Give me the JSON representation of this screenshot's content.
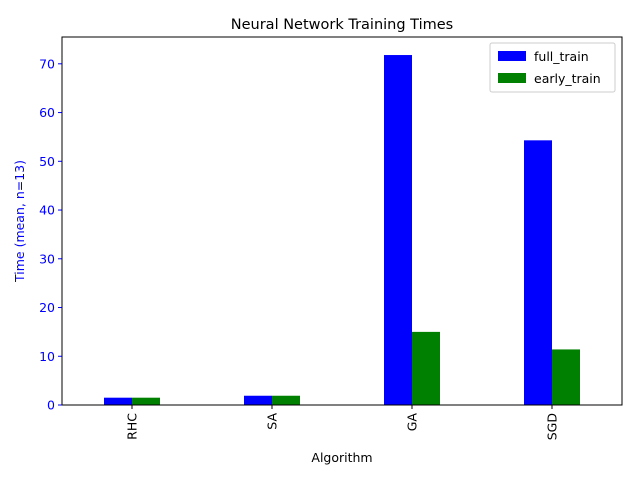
{
  "chart_data": {
    "type": "bar",
    "title": "Neural Network Training Times",
    "xlabel": "Algorithm",
    "ylabel": "Time (mean, n=13)",
    "categories": [
      "RHC",
      "SA",
      "GA",
      "SGD"
    ],
    "series": [
      {
        "name": "full_train",
        "values": [
          1.5,
          1.9,
          71.8,
          54.3
        ],
        "color": "#0000ff"
      },
      {
        "name": "early_train",
        "values": [
          1.5,
          1.9,
          15.0,
          11.4
        ],
        "color": "#008000"
      }
    ],
    "ylim": [
      0,
      75.5
    ],
    "yticks": [
      0,
      10,
      20,
      30,
      40,
      50,
      60,
      70
    ],
    "ylabel_color": "#0000ff",
    "ytick_color": "#0000ff",
    "grid": false,
    "legend_position": "top-right"
  }
}
